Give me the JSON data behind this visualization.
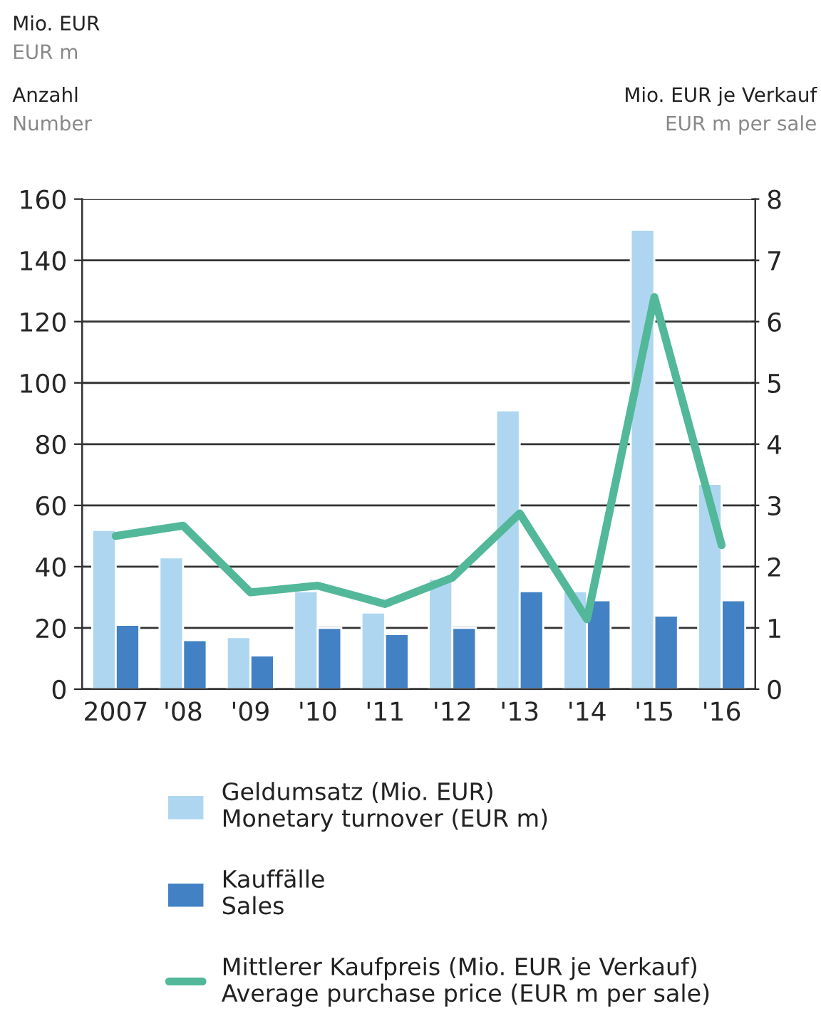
{
  "chart_data": {
    "type": "bar",
    "ylabel": "Mio. EUR\nEUR m\nAnzahl\nNumber",
    "y2label": "Mio. EUR je Verkauf\nEUR m per sale",
    "categories": [
      "2007",
      "'08",
      "'09",
      "'10",
      "'11",
      "'12",
      "'13",
      "'14",
      "'15",
      "'16"
    ],
    "series": [
      {
        "name": "Geldumsatz (Mio. EUR)\nMonetary turnover (EUR m)",
        "color": "#aed6f1",
        "values": [
          52,
          43,
          17,
          32,
          25,
          36,
          91,
          32,
          150,
          67
        ]
      },
      {
        "name": "Kauffälle\nSales",
        "color": "#4281c4",
        "values": [
          21,
          16,
          11,
          20,
          18,
          20,
          32,
          29,
          24,
          29
        ]
      },
      {
        "name": "Mittlerer Kaufpreis (Mio. EUR je Verkauf)\nAverage purchase price (EUR m per sale)",
        "type": "line",
        "axis": "y2",
        "color": "#52b899",
        "values": [
          2.5,
          2.67,
          1.58,
          1.69,
          1.39,
          1.82,
          2.87,
          1.14,
          6.4,
          2.35
        ]
      }
    ],
    "ylim": [
      0,
      160
    ],
    "yticks": [
      0,
      20,
      40,
      60,
      80,
      100,
      120,
      140,
      160
    ],
    "y2lim": [
      0,
      8
    ],
    "y2ticks": [
      0,
      1,
      2,
      3,
      4,
      5,
      6,
      7,
      8
    ],
    "grid": "y",
    "legend": "bottom"
  }
}
